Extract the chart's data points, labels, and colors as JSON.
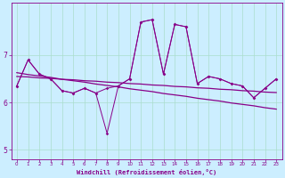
{
  "xlabel": "Windchill (Refroidissement éolien,°C)",
  "bg_color": "#cceeff",
  "grid_color": "#aaddcc",
  "line_color": "#880088",
  "hours": [
    0,
    1,
    2,
    3,
    4,
    5,
    6,
    7,
    8,
    9,
    10,
    11,
    12,
    13,
    14,
    15,
    16,
    17,
    18,
    19,
    20,
    21,
    22,
    23
  ],
  "s1": [
    6.35,
    6.9,
    6.6,
    6.5,
    6.25,
    6.2,
    6.3,
    6.2,
    6.3,
    6.35,
    6.5,
    7.7,
    7.75,
    6.6,
    7.65,
    7.6,
    6.4,
    6.55,
    6.5,
    6.4,
    6.35,
    6.1,
    6.3,
    6.5
  ],
  "s2": [
    6.35,
    6.9,
    6.6,
    6.5,
    6.25,
    6.2,
    6.3,
    6.2,
    5.35,
    6.35,
    6.5,
    7.7,
    7.75,
    6.6,
    7.65,
    7.6,
    6.4,
    6.55,
    6.5,
    6.4,
    6.35,
    6.1,
    6.3,
    6.5
  ],
  "trend1": [
    6.63,
    6.59,
    6.56,
    6.53,
    6.49,
    6.46,
    6.43,
    6.39,
    6.36,
    6.33,
    6.29,
    6.26,
    6.23,
    6.19,
    6.16,
    6.13,
    6.09,
    6.06,
    6.03,
    5.99,
    5.96,
    5.93,
    5.89,
    5.86
  ],
  "trend2": [
    6.55,
    6.54,
    6.52,
    6.51,
    6.49,
    6.48,
    6.46,
    6.45,
    6.43,
    6.42,
    6.4,
    6.39,
    6.37,
    6.36,
    6.34,
    6.33,
    6.31,
    6.3,
    6.28,
    6.27,
    6.25,
    6.24,
    6.22,
    6.21
  ],
  "ylim_min": 4.8,
  "ylim_max": 8.1,
  "yticks": [
    5,
    6,
    7
  ],
  "xticks": [
    0,
    1,
    2,
    3,
    4,
    5,
    6,
    7,
    8,
    9,
    10,
    11,
    12,
    13,
    14,
    15,
    16,
    17,
    18,
    19,
    20,
    21,
    22,
    23
  ]
}
